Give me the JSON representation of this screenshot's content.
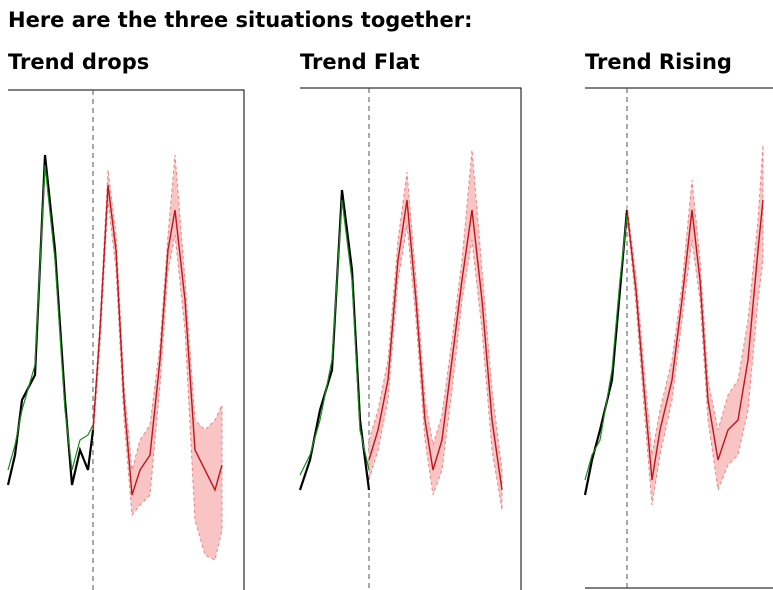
{
  "heading": "Here are the three situations together:",
  "panels": [
    {
      "title": "Trend drops"
    },
    {
      "title": "Trend Flat"
    },
    {
      "title": "Trend Rising"
    }
  ]
}
